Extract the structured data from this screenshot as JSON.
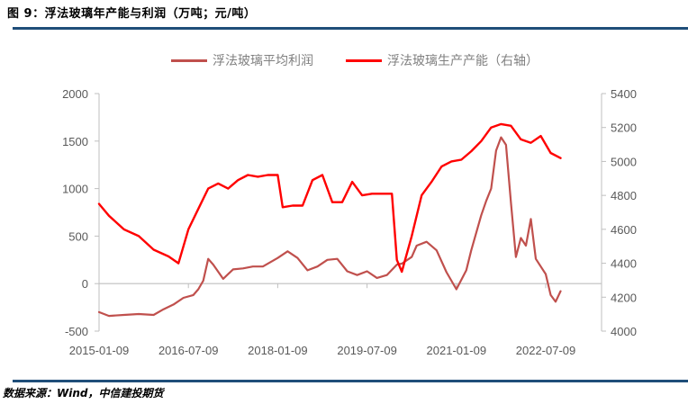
{
  "title": "图 9：浮法玻璃年产能与利润（万吨；元/吨）",
  "source": "数据来源：Wind，中信建投期货",
  "colors": {
    "profit": "#c0504d",
    "capacity": "#ff0000",
    "rule": "#1f4e79",
    "axis": "#bfbfbf",
    "tick_text": "#595959"
  },
  "legend": [
    {
      "label": "浮法玻璃平均利润",
      "color": "#c0504d"
    },
    {
      "label": "浮法玻璃生产产能（右轴）",
      "color": "#ff0000"
    }
  ],
  "chart_data": {
    "type": "line",
    "title": "浮法玻璃年产能与利润（万吨；元/吨）",
    "xlabel": "",
    "ylabel_left": "元/吨",
    "ylabel_right": "万吨",
    "x_ticks": [
      "2015-01-09",
      "2016-07-09",
      "2018-01-09",
      "2019-07-09",
      "2021-01-09",
      "2022-07-09"
    ],
    "y_left": {
      "ticks": [
        -500,
        0,
        500,
        1000,
        1500,
        2000
      ],
      "ylim": [
        -500,
        2000
      ]
    },
    "y_right": {
      "ticks": [
        4000,
        4200,
        4400,
        4600,
        4800,
        5000,
        5200,
        5400
      ],
      "ylim": [
        4000,
        5400
      ]
    },
    "grid": false,
    "legend_position": "top",
    "series": [
      {
        "name": "浮法玻璃平均利润",
        "axis": "left",
        "color": "#c0504d",
        "x": [
          "2015-01",
          "2015-03",
          "2015-06",
          "2015-09",
          "2015-12",
          "2016-02",
          "2016-04",
          "2016-06",
          "2016-08",
          "2016-09",
          "2016-10",
          "2016-11",
          "2016-12",
          "2017-02",
          "2017-04",
          "2017-06",
          "2017-08",
          "2017-10",
          "2018-01",
          "2018-03",
          "2018-05",
          "2018-07",
          "2018-09",
          "2018-11",
          "2019-01",
          "2019-03",
          "2019-05",
          "2019-07",
          "2019-09",
          "2019-11",
          "2020-01",
          "2020-02",
          "2020-04",
          "2020-05",
          "2020-07",
          "2020-09",
          "2020-11",
          "2021-01",
          "2021-03",
          "2021-04",
          "2021-06",
          "2021-07",
          "2021-08",
          "2021-09",
          "2021-10",
          "2021-11",
          "2021-12",
          "2022-01",
          "2022-02",
          "2022-03",
          "2022-04",
          "2022-05",
          "2022-06",
          "2022-07",
          "2022-08",
          "2022-09",
          "2022-10"
        ],
        "values": [
          -300,
          -340,
          -330,
          -320,
          -330,
          -270,
          -220,
          -150,
          -120,
          -60,
          30,
          260,
          200,
          50,
          150,
          160,
          180,
          180,
          270,
          340,
          270,
          140,
          180,
          250,
          260,
          130,
          90,
          130,
          60,
          90,
          200,
          210,
          280,
          400,
          440,
          350,
          120,
          -60,
          140,
          350,
          720,
          870,
          1000,
          1400,
          1540,
          1460,
          850,
          280,
          480,
          400,
          680,
          260,
          180,
          100,
          -120,
          -190,
          -80
        ],
        "values_note": "approximate, read from chart"
      },
      {
        "name": "浮法玻璃生产产能（右轴）",
        "axis": "right",
        "color": "#ff0000",
        "x": [
          "2015-01",
          "2015-03",
          "2015-06",
          "2015-09",
          "2015-12",
          "2016-03",
          "2016-05",
          "2016-07",
          "2016-09",
          "2016-11",
          "2017-01",
          "2017-03",
          "2017-05",
          "2017-07",
          "2017-09",
          "2017-11",
          "2018-01",
          "2018-02",
          "2018-04",
          "2018-06",
          "2018-08",
          "2018-10",
          "2018-12",
          "2019-02",
          "2019-04",
          "2019-06",
          "2019-08",
          "2019-10",
          "2019-12",
          "2020-01",
          "2020-02",
          "2020-04",
          "2020-06",
          "2020-08",
          "2020-10",
          "2020-12",
          "2021-02",
          "2021-04",
          "2021-06",
          "2021-08",
          "2021-10",
          "2021-12",
          "2022-02",
          "2022-04",
          "2022-06",
          "2022-08",
          "2022-10"
        ],
        "values": [
          4750,
          4680,
          4600,
          4560,
          4480,
          4440,
          4400,
          4600,
          4720,
          4840,
          4870,
          4840,
          4890,
          4920,
          4910,
          4920,
          4920,
          4730,
          4740,
          4740,
          4890,
          4920,
          4760,
          4760,
          4880,
          4800,
          4810,
          4810,
          4810,
          4420,
          4350,
          4560,
          4800,
          4880,
          4970,
          5000,
          5010,
          5060,
          5120,
          5200,
          5220,
          5210,
          5130,
          5110,
          5150,
          5050,
          5020
        ],
        "values_note": "approximate, read from chart"
      }
    ]
  }
}
